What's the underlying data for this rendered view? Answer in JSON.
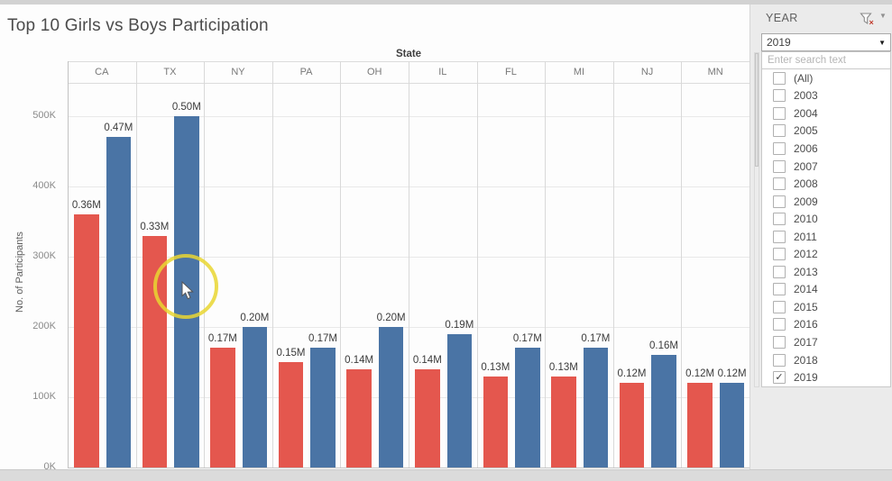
{
  "chart": {
    "title": "Top 10 Girls vs Boys Participation",
    "column_header_title": "State",
    "y_axis_title": "No. of Participants"
  },
  "chart_data": {
    "type": "bar",
    "title": "Top 10 Girls vs Boys Participation",
    "x_group_label": "State",
    "categories": [
      "CA",
      "TX",
      "NY",
      "PA",
      "OH",
      "IL",
      "FL",
      "MI",
      "NJ",
      "MN"
    ],
    "series": [
      {
        "name": "Girls",
        "color": "#e4574e",
        "values_millions": [
          0.36,
          0.33,
          0.17,
          0.15,
          0.14,
          0.14,
          0.13,
          0.13,
          0.12,
          0.12
        ]
      },
      {
        "name": "Boys",
        "color": "#4a74a5",
        "values_millions": [
          0.47,
          0.5,
          0.2,
          0.17,
          0.2,
          0.19,
          0.17,
          0.17,
          0.16,
          0.12
        ]
      }
    ],
    "ylabel": "No. of Participants",
    "yticks": [
      "0K",
      "100K",
      "200K",
      "300K",
      "400K",
      "500K"
    ],
    "ylim_participants": [
      0,
      560000
    ],
    "grid": true,
    "legend": "none",
    "data_labels": true,
    "label_format": "0.00M"
  },
  "filter_panel": {
    "title": "YEAR",
    "filter_icon": "funnel-with-red-x-icon",
    "menu_caret_icon": "caret-down-icon",
    "dropdown_value": "2019",
    "search_placeholder": "Enter search text",
    "options": [
      {
        "label": "(All)",
        "checked": false
      },
      {
        "label": "2003",
        "checked": false
      },
      {
        "label": "2004",
        "checked": false
      },
      {
        "label": "2005",
        "checked": false
      },
      {
        "label": "2006",
        "checked": false
      },
      {
        "label": "2007",
        "checked": false
      },
      {
        "label": "2008",
        "checked": false
      },
      {
        "label": "2009",
        "checked": false
      },
      {
        "label": "2010",
        "checked": false
      },
      {
        "label": "2011",
        "checked": false
      },
      {
        "label": "2012",
        "checked": false
      },
      {
        "label": "2013",
        "checked": false
      },
      {
        "label": "2014",
        "checked": false
      },
      {
        "label": "2015",
        "checked": false
      },
      {
        "label": "2016",
        "checked": false
      },
      {
        "label": "2017",
        "checked": false
      },
      {
        "label": "2018",
        "checked": false
      },
      {
        "label": "2019",
        "checked": true
      }
    ]
  },
  "cursor": {
    "click_highlight_color": "#e9d631",
    "checkmark": "✓"
  }
}
